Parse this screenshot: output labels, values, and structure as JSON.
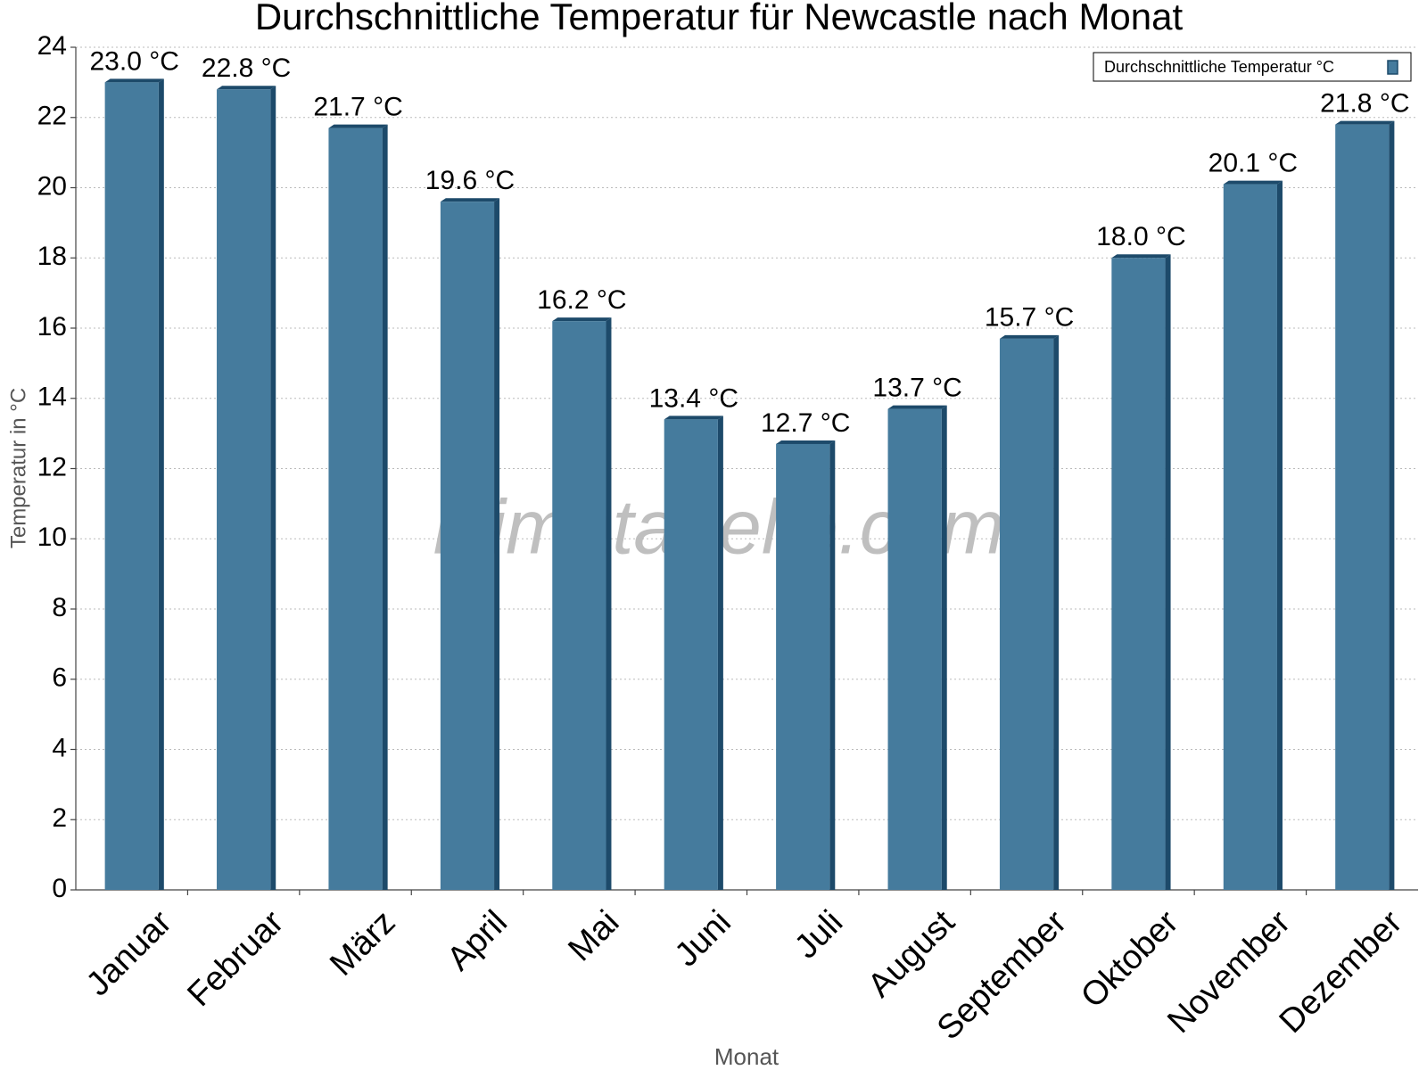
{
  "chart_data": {
    "type": "bar",
    "title": "Durchschnittliche Temperatur für Newcastle nach Monat",
    "x_label": "Monat",
    "y_label": "Temperatur in °C",
    "watermark": "klimatabelle.com",
    "categories": [
      "Januar",
      "Februar",
      "März",
      "April",
      "Mai",
      "Juni",
      "Juli",
      "August",
      "September",
      "Oktober",
      "November",
      "Dezember"
    ],
    "series": [
      {
        "name": "Durchschnittliche Temperatur °C",
        "color": "#457b9d",
        "values": [
          23.0,
          22.8,
          21.7,
          19.6,
          16.2,
          13.4,
          12.7,
          13.7,
          15.7,
          18.0,
          20.1,
          21.8
        ],
        "value_labels": [
          "23.0 °C",
          "22.8 °C",
          "21.7 °C",
          "19.6 °C",
          "16.2 °C",
          "13.4 °C",
          "12.7 °C",
          "13.7 °C",
          "15.7 °C",
          "18.0 °C",
          "20.1 °C",
          "21.8 °C"
        ]
      }
    ],
    "ylim": [
      0,
      24
    ],
    "yticks": [
      0,
      2,
      4,
      6,
      8,
      10,
      12,
      14,
      16,
      18,
      20,
      22,
      24
    ],
    "grid": true,
    "legend": "upper right"
  }
}
